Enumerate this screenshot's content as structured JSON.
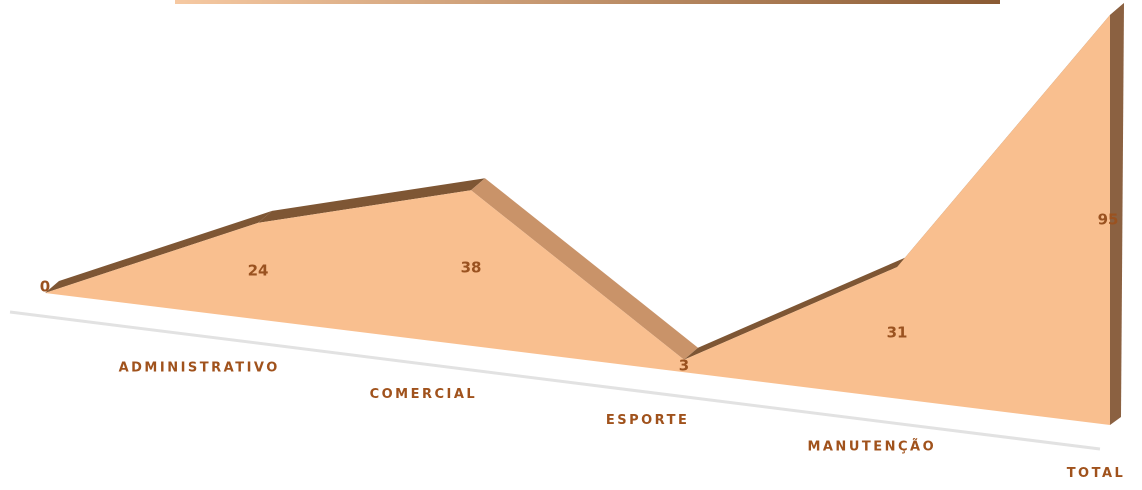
{
  "chart_data": {
    "type": "area",
    "categories": [
      null,
      "ADMINISTRATIVO",
      "COMERCIAL",
      "ESPORTE",
      "MANUTENÇÃO",
      "TOTAL"
    ],
    "values": [
      0,
      24,
      38,
      3,
      31,
      95
    ],
    "color": "#f9bf8f"
  }
}
